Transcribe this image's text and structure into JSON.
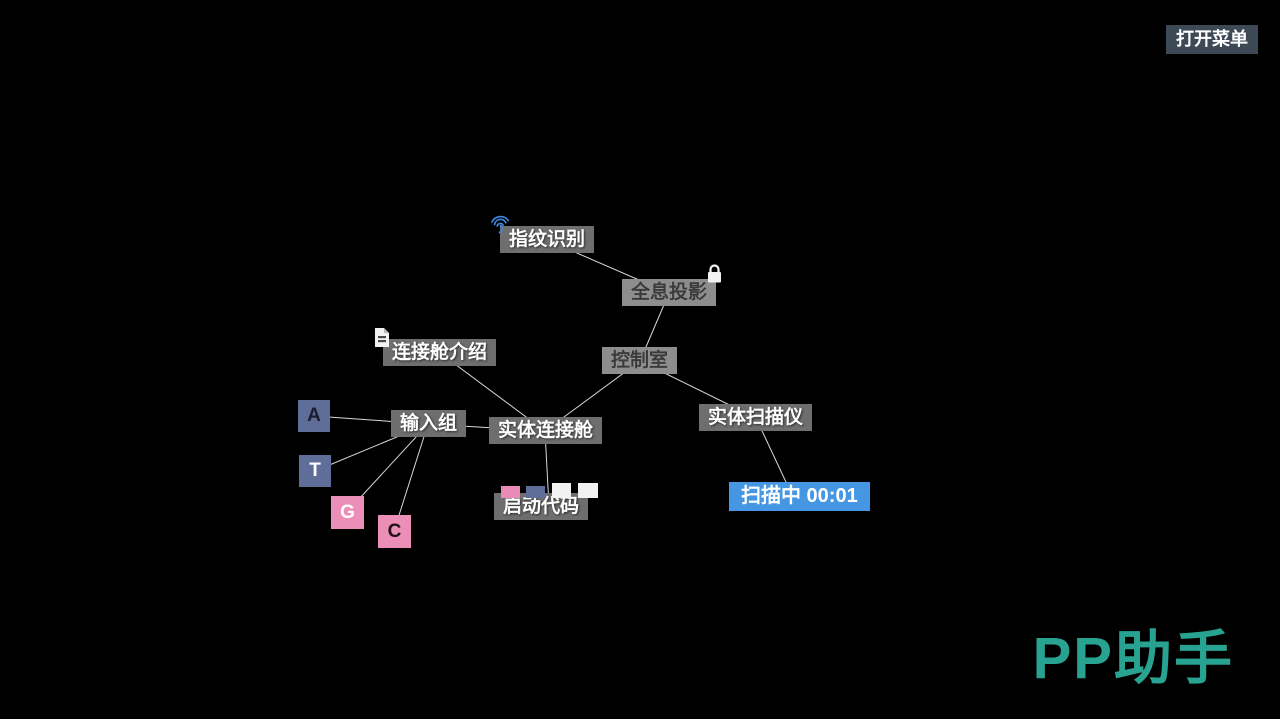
{
  "header": {
    "menu_button": "打开菜单"
  },
  "watermark": {
    "text": "PP助手",
    "color": "#28a392"
  },
  "colors": {
    "background": "#000000",
    "node_bg": "#6e6e6e",
    "node_text": "#ffffff",
    "visited_node_bg": "#8d8d8d",
    "visited_node_text": "#3a3a3a",
    "active_node_bg": "#4697e3",
    "edge": "#d8d8d8",
    "menu_button_bg": "#3d4a55",
    "fingerprint_icon": "#3f86dc"
  },
  "graph": {
    "nodes": {
      "fingerprint": {
        "label": "指纹识别",
        "icon": "fingerprint-icon",
        "state": "normal"
      },
      "hologram": {
        "label": "全息投影",
        "icon": "lock-icon",
        "state": "visited"
      },
      "intro": {
        "label": "连接舱介绍",
        "icon": "document-icon",
        "state": "normal"
      },
      "control": {
        "label": "控制室",
        "state": "visited"
      },
      "input_group": {
        "label": "输入组",
        "state": "normal"
      },
      "pod": {
        "label": "实体连接舱",
        "state": "normal"
      },
      "scanner": {
        "label": "实体扫描仪",
        "state": "normal"
      },
      "scanning": {
        "label": "扫描中 00:01",
        "state": "active"
      },
      "code": {
        "label": "启动代码",
        "state": "normal"
      }
    },
    "tiles": [
      {
        "label": "A",
        "color": "#5f6d99",
        "text_color": "#191d2e"
      },
      {
        "label": "T",
        "color": "#5f6d99",
        "text_color": "#ffffff"
      },
      {
        "label": "G",
        "color": "#ec8fb8",
        "text_color": "#ffffff"
      },
      {
        "label": "C",
        "color": "#ec8fb8",
        "text_color": "#1f1016"
      }
    ],
    "code_squares": [
      {
        "color": "#e98ab6"
      },
      {
        "color": "#5f6d99"
      },
      {
        "color": "#f2f2f2"
      },
      {
        "color": "#f2f2f2"
      }
    ],
    "edges": [
      [
        "fingerprint",
        "hologram"
      ],
      [
        "hologram",
        "control"
      ],
      [
        "control",
        "pod"
      ],
      [
        "control",
        "scanner"
      ],
      [
        "scanner",
        "scanning"
      ],
      [
        "intro",
        "pod"
      ],
      [
        "input_group",
        "pod"
      ],
      [
        "input_group",
        "tile_a"
      ],
      [
        "input_group",
        "tile_t"
      ],
      [
        "input_group",
        "tile_g"
      ],
      [
        "input_group",
        "tile_c"
      ],
      [
        "pod",
        "code"
      ]
    ]
  }
}
